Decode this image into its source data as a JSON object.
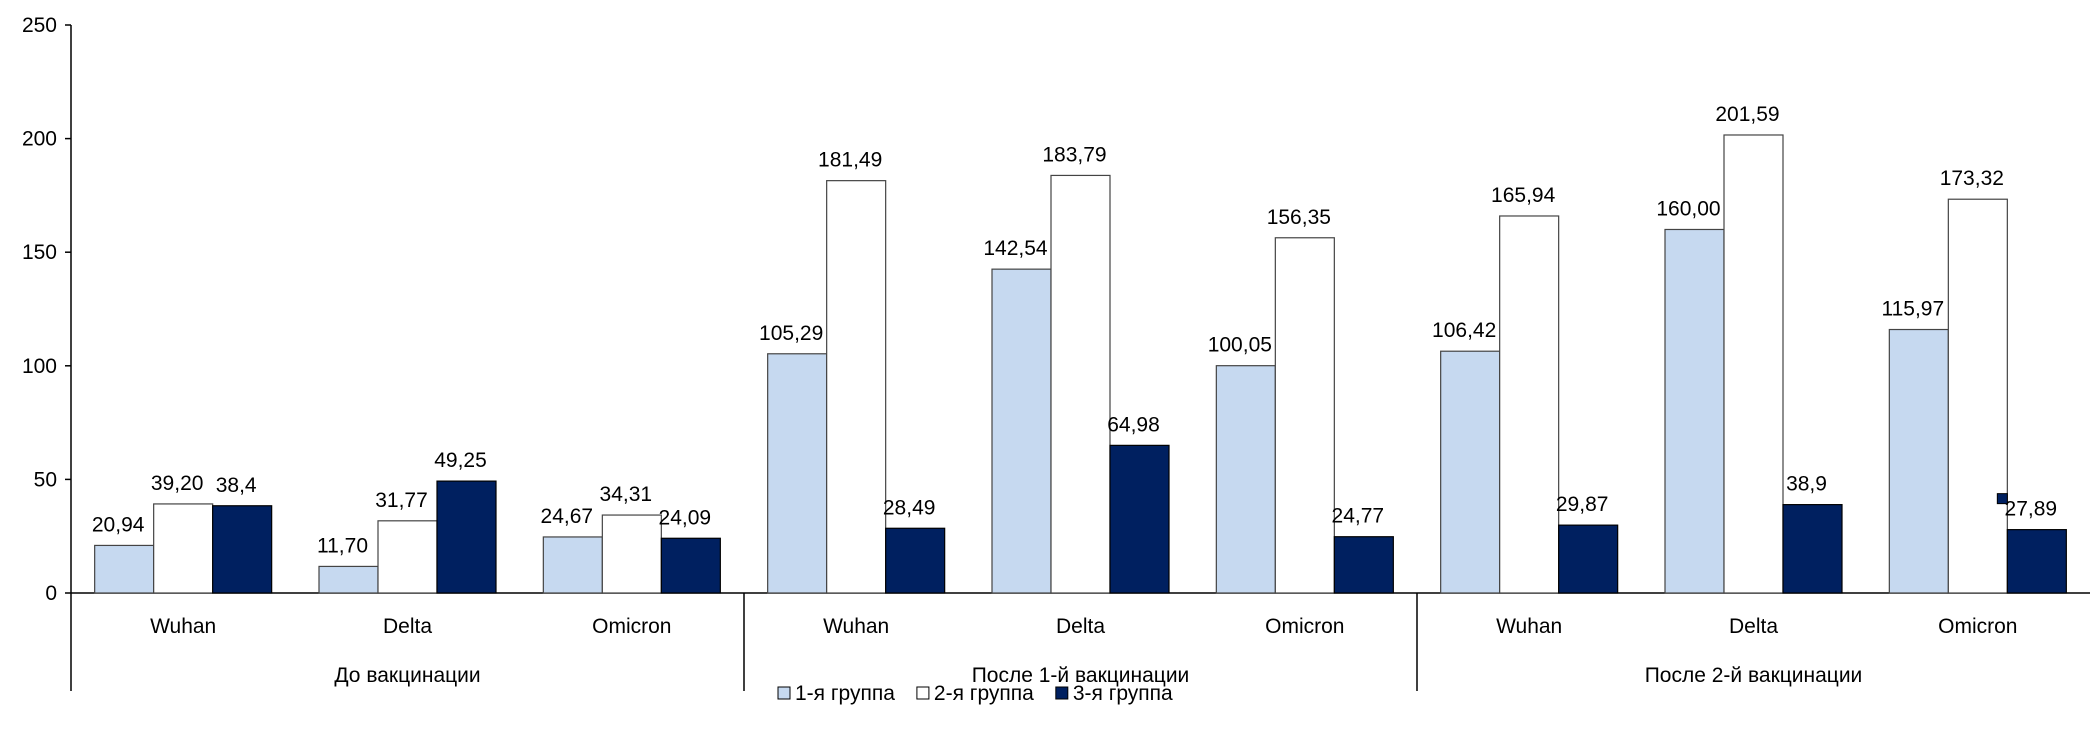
{
  "chart_data": {
    "type": "bar",
    "title": "",
    "xlabel": "",
    "ylabel": "",
    "ylim": [
      0,
      250
    ],
    "yticks": [
      0,
      50,
      100,
      150,
      200,
      250
    ],
    "ytick_labels": [
      "0",
      "50",
      "100",
      "150",
      "200",
      "250"
    ],
    "grid": false,
    "legend_position": "bottom-center",
    "groups": [
      {
        "label": "До вакцинации",
        "categories": [
          "Wuhan",
          "Delta",
          "Omicron"
        ]
      },
      {
        "label": "После 1-й вакцинации",
        "categories": [
          "Wuhan",
          "Delta",
          "Omicron"
        ]
      },
      {
        "label": "После 2-й вакцинации",
        "categories": [
          "Wuhan",
          "Delta",
          "Omicron"
        ]
      }
    ],
    "series": [
      {
        "name": "1-я группа",
        "color": "#C6D9F0",
        "values": [
          20.94,
          11.7,
          24.67,
          105.29,
          142.54,
          100.05,
          106.42,
          160.0,
          115.97
        ],
        "labels": [
          "20,94",
          "11,70",
          "24,67",
          "105,29",
          "142,54",
          "100,05",
          "106,42",
          "160,00",
          "115,97"
        ]
      },
      {
        "name": "2-я группа",
        "color": "#FFFFFF",
        "values": [
          39.2,
          31.77,
          34.31,
          181.49,
          183.79,
          156.35,
          165.94,
          201.59,
          173.32
        ],
        "labels": [
          "39,20",
          "31,77",
          "34,31",
          "181,49",
          "183,79",
          "156,35",
          "165,94",
          "201,59",
          "173,32"
        ]
      },
      {
        "name": "3-я группа",
        "color": "#002060",
        "values": [
          38.4,
          49.25,
          24.09,
          28.49,
          64.98,
          24.77,
          29.87,
          38.9,
          27.89
        ],
        "labels": [
          "38,4",
          "49,25",
          "24,09",
          "28,49",
          "64,98",
          "24,77",
          "29,87",
          "38,9",
          "27,89"
        ]
      }
    ]
  }
}
